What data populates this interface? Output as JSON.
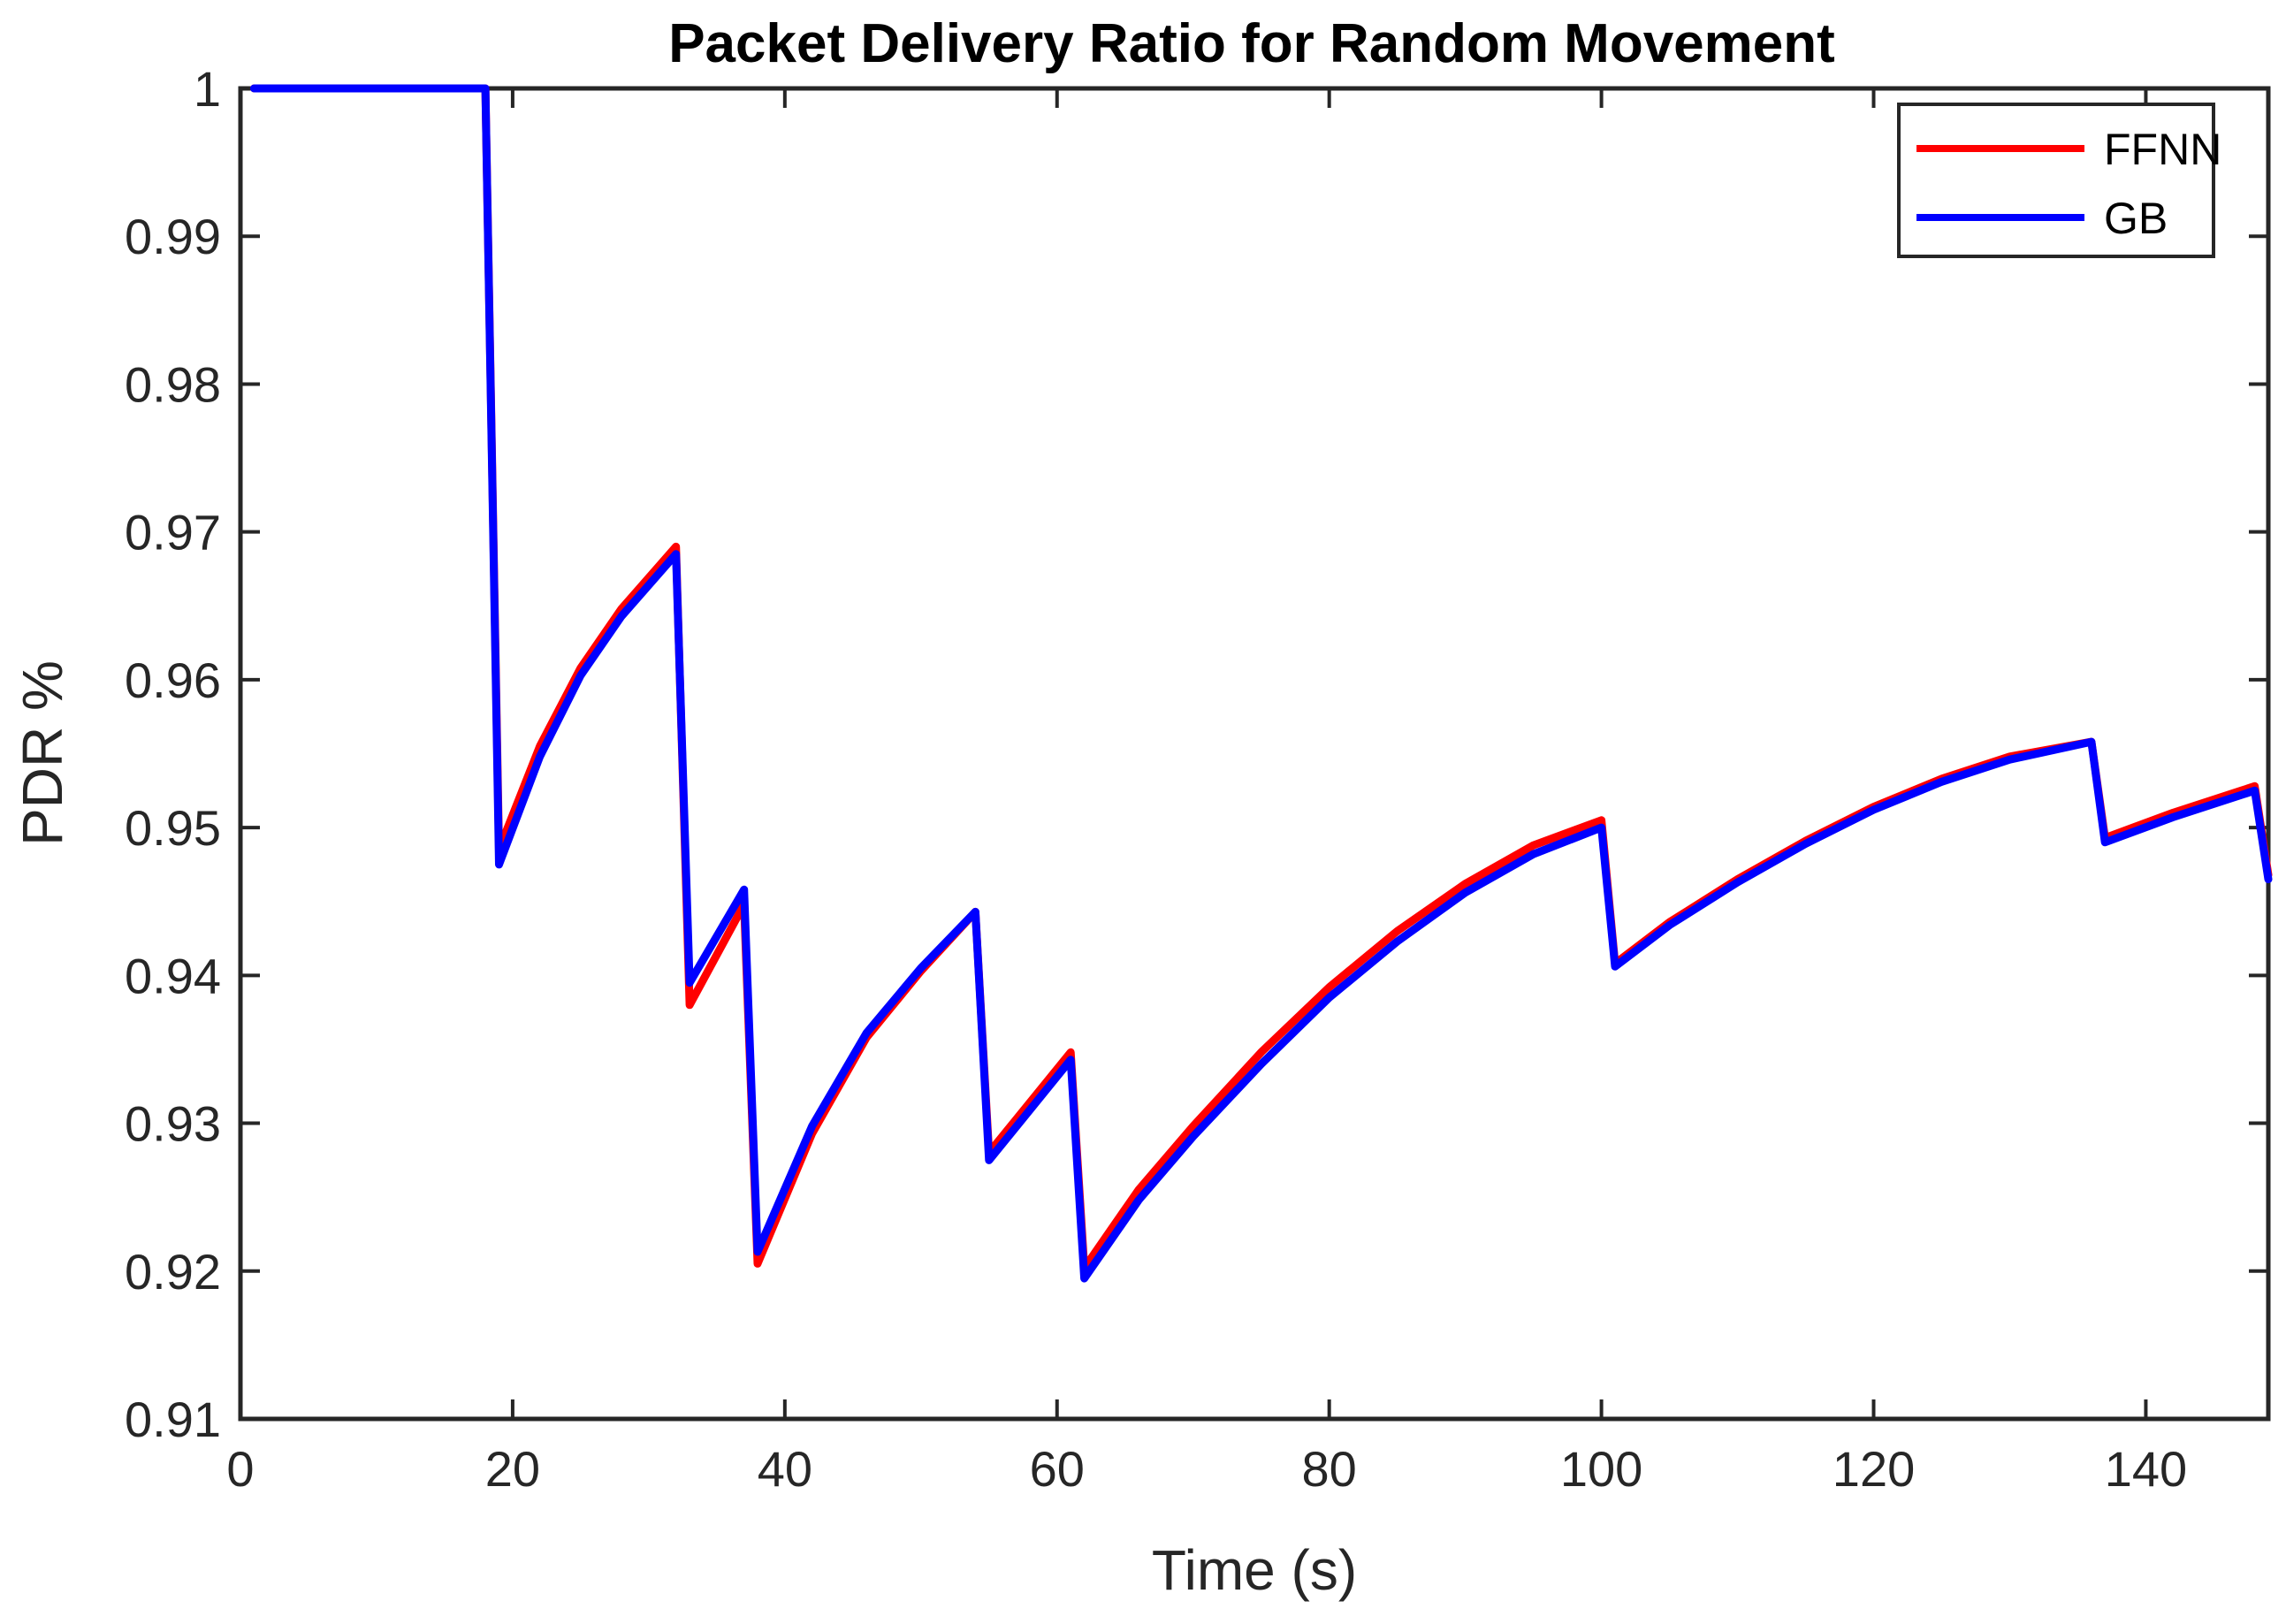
{
  "chart_data": {
    "type": "line",
    "title": "Packet Delivery Ratio for Random Movement",
    "xlabel": "Time (s)",
    "ylabel": "PDR %",
    "xlim": [
      0,
      149
    ],
    "ylim": [
      0.91,
      1.0
    ],
    "xticks": [
      0,
      20,
      40,
      60,
      80,
      100,
      120,
      140
    ],
    "yticks": [
      0.91,
      0.92,
      0.93,
      0.94,
      0.95,
      0.96,
      0.97,
      0.98,
      0.99,
      1
    ],
    "ytick_labels": [
      "0.91",
      "0.92",
      "0.93",
      "0.94",
      "0.95",
      "0.96",
      "0.97",
      "0.98",
      "0.99",
      "1"
    ],
    "grid": false,
    "legend_position": "top-right",
    "series": [
      {
        "name": "FFNN",
        "color": "#ff0000",
        "x": [
          1,
          18,
          19,
          22,
          25,
          28,
          32,
          33,
          37,
          38,
          42,
          46,
          50,
          54,
          55,
          61,
          62,
          66,
          70,
          75,
          80,
          85,
          90,
          95,
          100,
          101,
          105,
          110,
          115,
          120,
          125,
          130,
          136,
          137,
          142,
          148,
          149
        ],
        "y": [
          1,
          1,
          0.9485,
          0.9555,
          0.9608,
          0.9648,
          0.969,
          0.938,
          0.9448,
          0.9205,
          0.9293,
          0.9358,
          0.9403,
          0.9443,
          0.928,
          0.9348,
          0.9202,
          0.9255,
          0.9298,
          0.9348,
          0.9392,
          0.943,
          0.9462,
          0.9488,
          0.9505,
          0.9408,
          0.9436,
          0.9465,
          0.9491,
          0.9514,
          0.9533,
          0.9548,
          0.9558,
          0.9493,
          0.951,
          0.9528,
          0.9468
        ]
      },
      {
        "name": "GB",
        "color": "#0000ff",
        "x": [
          1,
          18,
          19,
          22,
          25,
          28,
          32,
          33,
          37,
          38,
          42,
          46,
          50,
          54,
          55,
          61,
          62,
          66,
          70,
          75,
          80,
          85,
          90,
          95,
          100,
          101,
          105,
          110,
          115,
          120,
          125,
          130,
          136,
          137,
          142,
          148,
          149
        ],
        "y": [
          1,
          1,
          0.9475,
          0.9548,
          0.9603,
          0.9643,
          0.9685,
          0.9395,
          0.9458,
          0.9213,
          0.9298,
          0.9361,
          0.9405,
          0.9443,
          0.9275,
          0.9343,
          0.9195,
          0.9248,
          0.9291,
          0.934,
          0.9385,
          0.9423,
          0.9456,
          0.9482,
          0.95,
          0.9406,
          0.9434,
          0.9463,
          0.9489,
          0.9512,
          0.9531,
          0.9546,
          0.9558,
          0.949,
          0.9507,
          0.9525,
          0.9465
        ]
      }
    ]
  }
}
